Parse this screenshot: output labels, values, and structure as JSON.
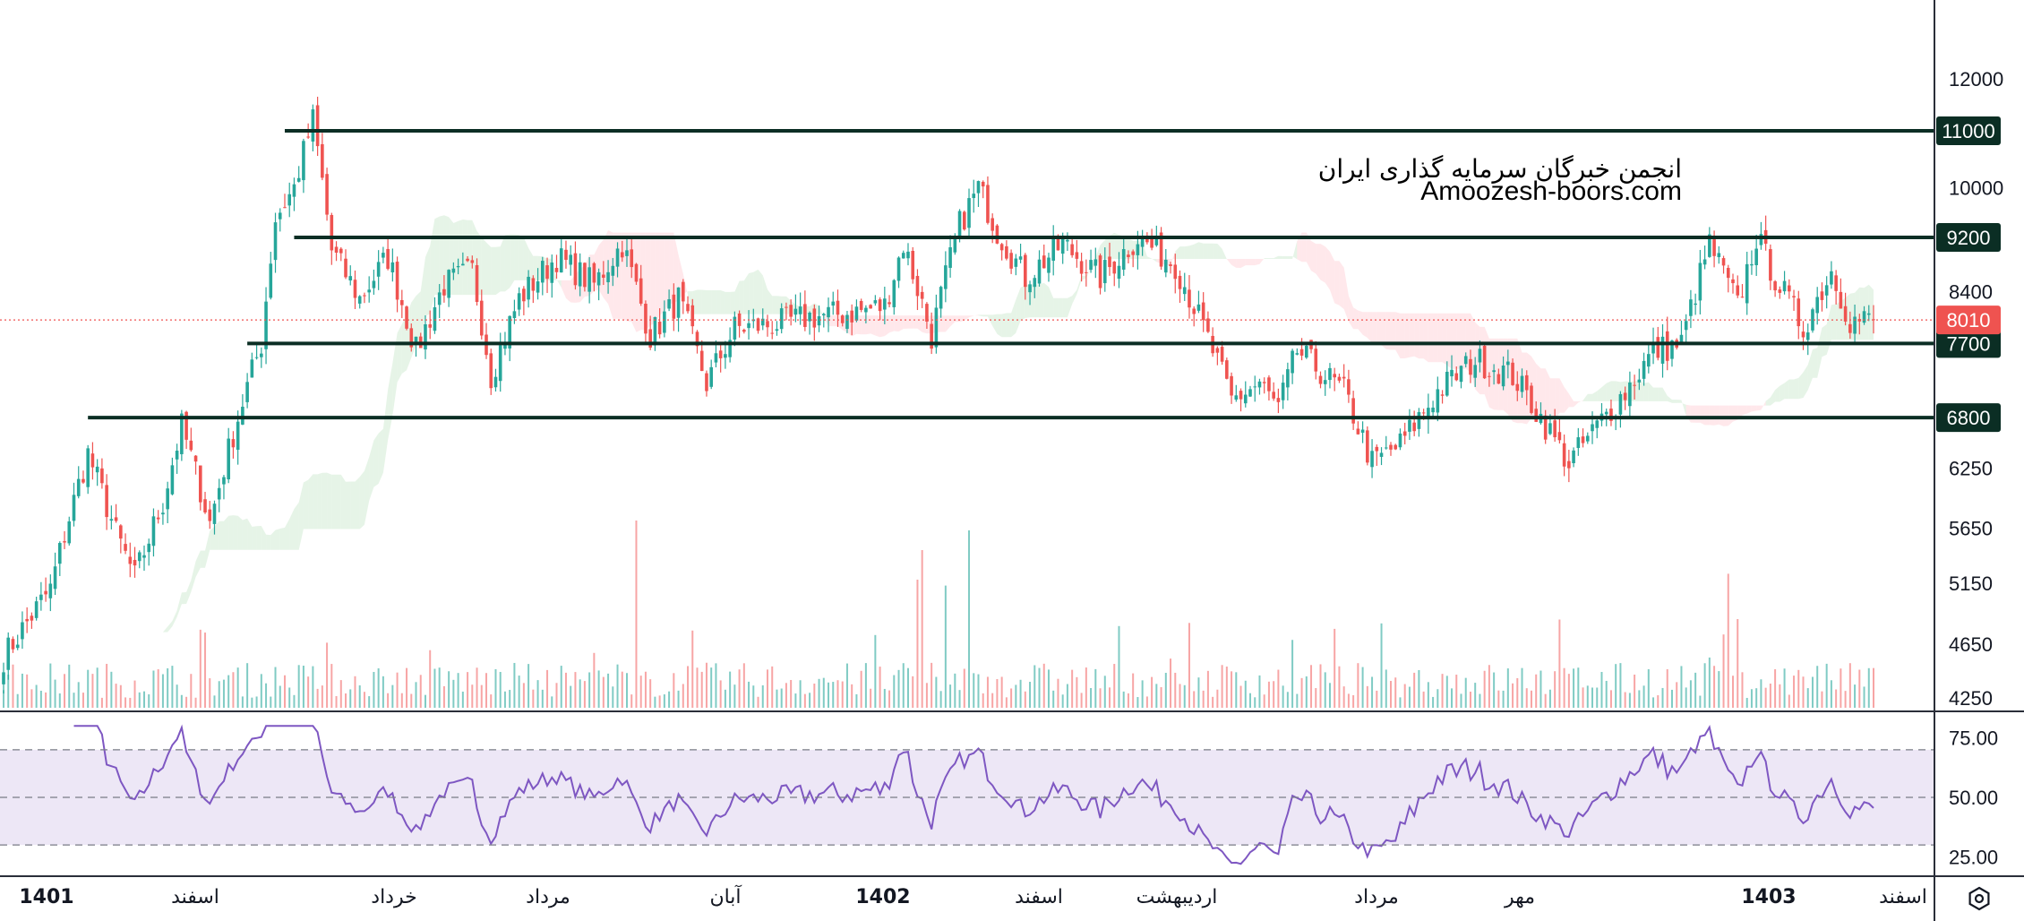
{
  "watermark": {
    "line1": "انجمن خبرگان سرمایه گذاری ایران",
    "line2": "Amoozesh-boors.com"
  },
  "colors": {
    "up": "#26a69a",
    "down": "#ef5350",
    "level_line": "#0b2e24",
    "current_price": "#ef5350",
    "rsi_line": "#7e57c2",
    "rsi_band": "#ede7f6"
  },
  "chart_data": {
    "type": "candlestick",
    "price_axis": {
      "ticks": [
        12000,
        10000,
        8400,
        6250,
        5650,
        5150,
        4650,
        4250
      ],
      "tick_labels": [
        "12000",
        "10000",
        "8400",
        "6250",
        "5650",
        "5150",
        "4650",
        "4250"
      ],
      "ylim": [
        4180,
        12900
      ],
      "scale": "log"
    },
    "time_axis": {
      "labels": [
        "1401",
        "اسفند",
        "خرداد",
        "مرداد",
        "آبان",
        "1402",
        "اسفند",
        "اردیبهشت",
        "مرداد",
        "مهر",
        "1403",
        "اسفند"
      ],
      "bold": [
        true,
        false,
        false,
        false,
        false,
        true,
        false,
        false,
        false,
        false,
        true,
        false
      ]
    },
    "horizontal_levels": [
      {
        "value": 11000,
        "label": "11000",
        "from_bar": 60
      },
      {
        "value": 9200,
        "label": "9200",
        "from_bar": 62
      },
      {
        "value": 7700,
        "label": "7700",
        "from_bar": 52
      },
      {
        "value": 6800,
        "label": "6800",
        "from_bar": 18
      }
    ],
    "current_price": {
      "value": 8010,
      "label": "8010"
    },
    "rsi": {
      "ticks": [
        "75.00",
        "50.00",
        "25.00"
      ],
      "upper": 70,
      "middle": 50,
      "lower": 30,
      "ylim": [
        18,
        82
      ]
    },
    "bar_count": 400,
    "anchors": [
      [
        0,
        4550
      ],
      [
        10,
        5100
      ],
      [
        18,
        6400
      ],
      [
        24,
        5600
      ],
      [
        28,
        5200
      ],
      [
        34,
        5900
      ],
      [
        38,
        6700
      ],
      [
        44,
        5700
      ],
      [
        50,
        6800
      ],
      [
        55,
        7700
      ],
      [
        58,
        9500
      ],
      [
        62,
        10000
      ],
      [
        66,
        11200
      ],
      [
        70,
        9000
      ],
      [
        76,
        8300
      ],
      [
        82,
        8900
      ],
      [
        88,
        7600
      ],
      [
        94,
        8500
      ],
      [
        100,
        8700
      ],
      [
        104,
        7300
      ],
      [
        110,
        8300
      ],
      [
        118,
        8900
      ],
      [
        126,
        8500
      ],
      [
        132,
        9100
      ],
      [
        138,
        7800
      ],
      [
        144,
        8300
      ],
      [
        150,
        7200
      ],
      [
        156,
        7900
      ],
      [
        164,
        7950
      ],
      [
        172,
        8050
      ],
      [
        180,
        8100
      ],
      [
        188,
        8200
      ],
      [
        192,
        9100
      ],
      [
        198,
        7800
      ],
      [
        204,
        9400
      ],
      [
        208,
        10000
      ],
      [
        212,
        9300
      ],
      [
        218,
        8600
      ],
      [
        226,
        9100
      ],
      [
        234,
        8600
      ],
      [
        242,
        9200
      ],
      [
        250,
        8800
      ],
      [
        256,
        7900
      ],
      [
        262,
        7000
      ],
      [
        268,
        7200
      ],
      [
        272,
        6900
      ],
      [
        276,
        7600
      ],
      [
        280,
        7400
      ],
      [
        286,
        7100
      ],
      [
        292,
        6300
      ],
      [
        298,
        6500
      ],
      [
        306,
        7100
      ],
      [
        314,
        7500
      ],
      [
        322,
        7300
      ],
      [
        328,
        6800
      ],
      [
        334,
        6300
      ],
      [
        340,
        6700
      ],
      [
        346,
        7100
      ],
      [
        352,
        7600
      ],
      [
        358,
        7700
      ],
      [
        364,
        9100
      ],
      [
        370,
        8200
      ],
      [
        374,
        9200
      ],
      [
        378,
        8600
      ],
      [
        384,
        7900
      ],
      [
        390,
        8700
      ],
      [
        394,
        8000
      ],
      [
        399,
        8010
      ]
    ],
    "volume_spikes": [
      {
        "bar": 135,
        "value": 0.95
      },
      {
        "bar": 195,
        "value": 0.65
      },
      {
        "bar": 196,
        "value": 0.8
      },
      {
        "bar": 201,
        "value": 0.62
      },
      {
        "bar": 206,
        "value": 0.9
      },
      {
        "bar": 368,
        "value": 0.68
      },
      {
        "bar": 370,
        "value": 0.45
      }
    ]
  }
}
